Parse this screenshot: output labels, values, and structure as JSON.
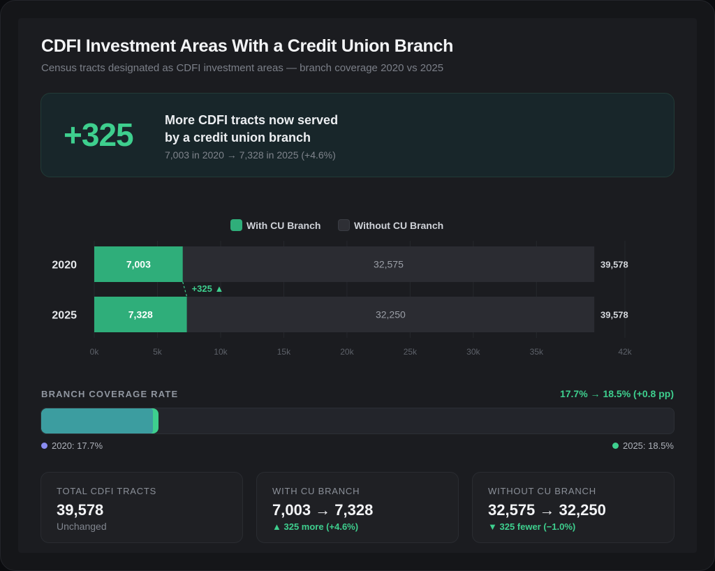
{
  "header": {
    "title": "CDFI Investment Areas With a Credit Union Branch",
    "subtitle": "Census tracts designated as CDFI investment areas — branch coverage 2020 vs 2025"
  },
  "hero": {
    "value": "+325",
    "line1": "More CDFI tracts now served",
    "line2": "by a credit union branch",
    "detail": "7,003 in 2020 → 7,328 in 2025  (+4.6%)"
  },
  "legend": {
    "with_label": "With CU Branch",
    "without_label": "Without CU Branch"
  },
  "colors": {
    "accent_green": "#3ecf8e",
    "bar_with": "#2fae7a",
    "bar_without": "#2b2c32",
    "coverage_2020": "#8a8cf0"
  },
  "chart_data": {
    "type": "bar",
    "orientation": "horizontal",
    "stacked": true,
    "categories": [
      "2020",
      "2025"
    ],
    "series": [
      {
        "name": "With CU Branch",
        "values": [
          7003,
          7328
        ],
        "labels": [
          "7,003",
          "7,328"
        ]
      },
      {
        "name": "Without CU Branch",
        "values": [
          32575,
          32250
        ],
        "labels": [
          "32,575",
          "32,250"
        ]
      }
    ],
    "totals": [
      "39,578",
      "39,578"
    ],
    "xlim": [
      0,
      42000
    ],
    "xticks": [
      "0k",
      "5k",
      "10k",
      "15k",
      "20k",
      "25k",
      "30k",
      "35k",
      "42k"
    ],
    "xtick_values": [
      0,
      5000,
      10000,
      15000,
      20000,
      25000,
      30000,
      35000,
      42000
    ],
    "annotation": "+325 ▲",
    "legend_position": "top-center",
    "grid": true
  },
  "coverage": {
    "label": "BRANCH COVERAGE RATE",
    "delta": "17.7% → 18.5%  (+0.8 pp)",
    "rate_2020": 17.7,
    "rate_2025": 18.5,
    "label_2020": "2020: 17.7%",
    "label_2025": "2025: 18.5%"
  },
  "stats": [
    {
      "label": "TOTAL CDFI TRACTS",
      "value": "39,578",
      "note": "Unchanged"
    },
    {
      "label": "WITH CU BRANCH",
      "value": "7,003 → 7,328",
      "note": "▲ 325 more  (+4.6%)"
    },
    {
      "label": "WITHOUT CU BRANCH",
      "value": "32,575 → 32,250",
      "note": "▼ 325 fewer  (−1.0%)"
    }
  ]
}
